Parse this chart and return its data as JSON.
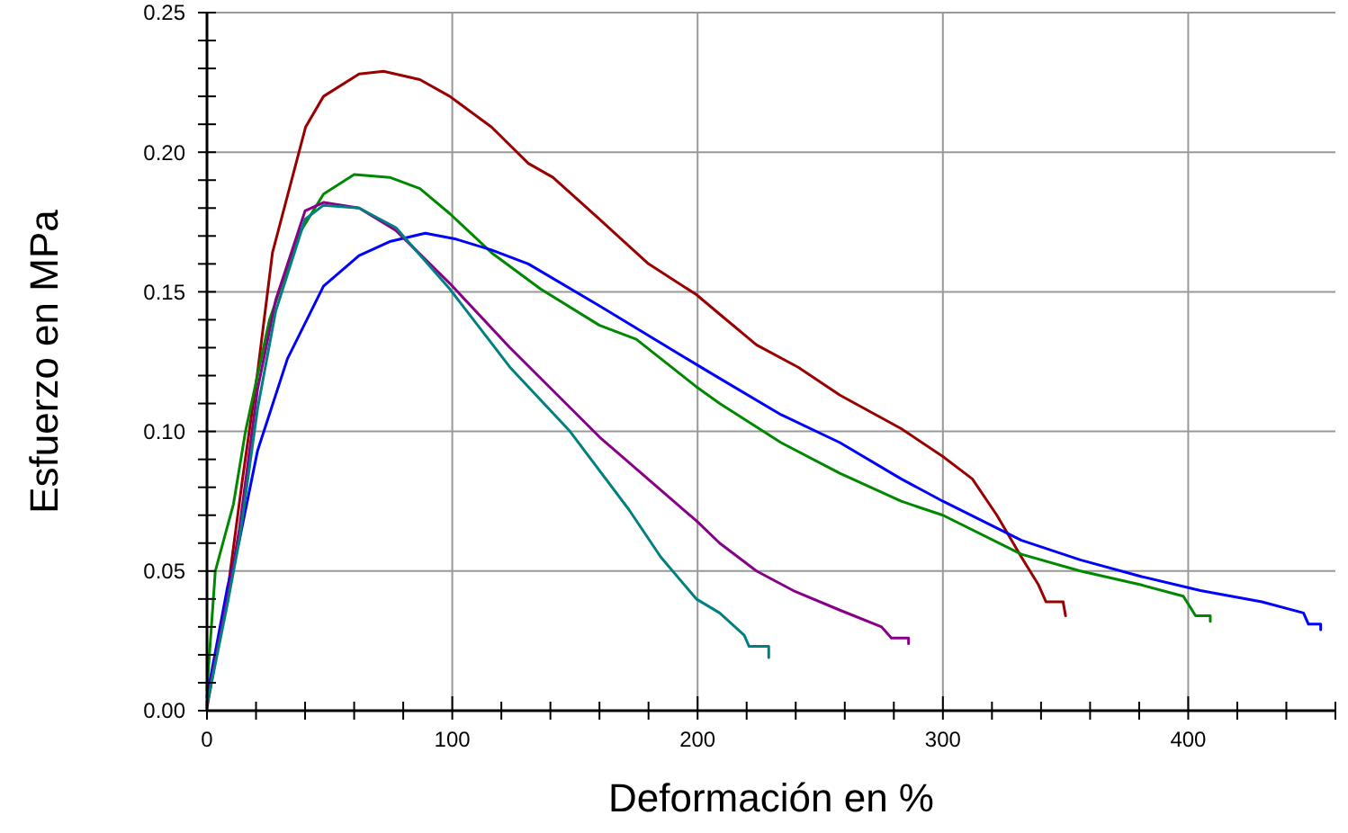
{
  "chart_data": {
    "type": "line",
    "xlabel": "Deformación en %",
    "ylabel": "Esfuerzo en MPa",
    "xlim": [
      0,
      460
    ],
    "ylim": [
      0,
      0.25
    ],
    "xticks": [
      0,
      {
        "value": 20,
        "label": null
      },
      {
        "value": 40,
        "label": null
      },
      {
        "value": 60,
        "label": null
      },
      {
        "value": 80,
        "label": null
      },
      100,
      {
        "value": 120,
        "label": null
      },
      {
        "value": 140,
        "label": null
      },
      {
        "value": 160,
        "label": null
      },
      {
        "value": 180,
        "label": null
      },
      200,
      {
        "value": 220,
        "label": null
      },
      {
        "value": 240,
        "label": null
      },
      {
        "value": 260,
        "label": null
      },
      {
        "value": 280,
        "label": null
      },
      300,
      {
        "value": 320,
        "label": null
      },
      {
        "value": 340,
        "label": null
      },
      {
        "value": 360,
        "label": null
      },
      {
        "value": 380,
        "label": null
      },
      400,
      {
        "value": 420,
        "label": null
      },
      {
        "value": 440,
        "label": null
      },
      {
        "value": 460,
        "label": null
      }
    ],
    "yticks": [
      {
        "value": 0,
        "label": "0.00"
      },
      {
        "value": 0.01,
        "label": null
      },
      {
        "value": 0.02,
        "label": null
      },
      {
        "value": 0.03,
        "label": null
      },
      {
        "value": 0.04,
        "label": null
      },
      {
        "value": 0.05,
        "label": "0.05"
      },
      {
        "value": 0.06,
        "label": null
      },
      {
        "value": 0.07,
        "label": null
      },
      {
        "value": 0.08,
        "label": null
      },
      {
        "value": 0.09,
        "label": null
      },
      {
        "value": 0.1,
        "label": "0.10"
      },
      {
        "value": 0.11,
        "label": null
      },
      {
        "value": 0.12,
        "label": null
      },
      {
        "value": 0.13,
        "label": null
      },
      {
        "value": 0.14,
        "label": null
      },
      {
        "value": 0.15,
        "label": "0.15"
      },
      {
        "value": 0.16,
        "label": null
      },
      {
        "value": 0.17,
        "label": null
      },
      {
        "value": 0.18,
        "label": null
      },
      {
        "value": 0.19,
        "label": null
      },
      {
        "value": 0.2,
        "label": "0.20"
      },
      {
        "value": 0.21,
        "label": null
      },
      {
        "value": 0.22,
        "label": null
      },
      {
        "value": 0.23,
        "label": null
      },
      {
        "value": 0.24,
        "label": null
      },
      {
        "value": 0.25,
        "label": "0.25"
      }
    ],
    "grid": true,
    "marker": "none",
    "line_style": "solid",
    "series": [
      {
        "color": "#990000",
        "x": [
          0,
          8.3,
          14.5,
          20.6,
          26.7,
          40.2,
          47.5,
          62,
          72,
          86.8,
          99,
          116,
          131,
          141,
          160,
          180,
          199.5,
          209,
          224,
          241,
          258,
          283,
          300,
          312,
          322,
          332,
          339,
          342,
          349,
          350
        ],
        "values": [
          0.001,
          0.042,
          0.083,
          0.121,
          0.164,
          0.209,
          0.22,
          0.228,
          0.229,
          0.226,
          0.22,
          0.209,
          0.196,
          0.191,
          0.176,
          0.16,
          0.149,
          0.142,
          0.131,
          0.123,
          0.113,
          0.101,
          0.091,
          0.083,
          0.07,
          0.055,
          0.045,
          0.039,
          0.039,
          0.034
        ]
      },
      {
        "color": "#008800",
        "x": [
          0,
          3.4,
          10.8,
          15.7,
          25.5,
          37.7,
          47.5,
          60,
          74.5,
          86.8,
          99,
          116,
          136,
          160,
          175,
          199.5,
          209,
          234,
          258,
          283,
          300,
          332,
          356,
          381,
          398,
          403,
          409,
          409
        ],
        "values": [
          0.0075,
          0.05,
          0.074,
          0.1,
          0.14,
          0.171,
          0.185,
          0.192,
          0.191,
          0.187,
          0.178,
          0.164,
          0.151,
          0.138,
          0.133,
          0.116,
          0.11,
          0.096,
          0.085,
          0.075,
          0.07,
          0.056,
          0.05,
          0.045,
          0.041,
          0.034,
          0.034,
          0.032
        ]
      },
      {
        "color": "#0000ff",
        "x": [
          0,
          8.3,
          13.2,
          20.6,
          32.8,
          47.5,
          62,
          74.5,
          89,
          101,
          116,
          131,
          160,
          199.5,
          209,
          234,
          258,
          283,
          300,
          332,
          356,
          381,
          405,
          430,
          447,
          449,
          454,
          454
        ],
        "values": [
          0.005,
          0.044,
          0.061,
          0.093,
          0.126,
          0.152,
          0.163,
          0.168,
          0.171,
          0.169,
          0.165,
          0.16,
          0.145,
          0.124,
          0.119,
          0.106,
          0.096,
          0.083,
          0.075,
          0.061,
          0.054,
          0.048,
          0.043,
          0.039,
          0.035,
          0.031,
          0.031,
          0.029
        ]
      },
      {
        "color": "#880088",
        "x": [
          0,
          8.3,
          13.2,
          20.6,
          28,
          40,
          47.5,
          62,
          77,
          99,
          123.5,
          160,
          199.5,
          209,
          224,
          239,
          258,
          275,
          279,
          286,
          286
        ],
        "values": [
          0.003,
          0.04,
          0.065,
          0.115,
          0.147,
          0.179,
          0.182,
          0.18,
          0.172,
          0.153,
          0.13,
          0.098,
          0.068,
          0.06,
          0.05,
          0.043,
          0.036,
          0.03,
          0.026,
          0.026,
          0.024
        ]
      },
      {
        "color": "#008080",
        "x": [
          0,
          8.3,
          13.2,
          20.6,
          28,
          40,
          47.5,
          62,
          77,
          99,
          123.5,
          148,
          172,
          185,
          199.5,
          209,
          219,
          221,
          229,
          229
        ],
        "values": [
          0.002,
          0.038,
          0.061,
          0.108,
          0.143,
          0.176,
          0.181,
          0.18,
          0.173,
          0.151,
          0.123,
          0.1,
          0.072,
          0.055,
          0.04,
          0.035,
          0.027,
          0.023,
          0.023,
          0.019
        ]
      }
    ]
  }
}
